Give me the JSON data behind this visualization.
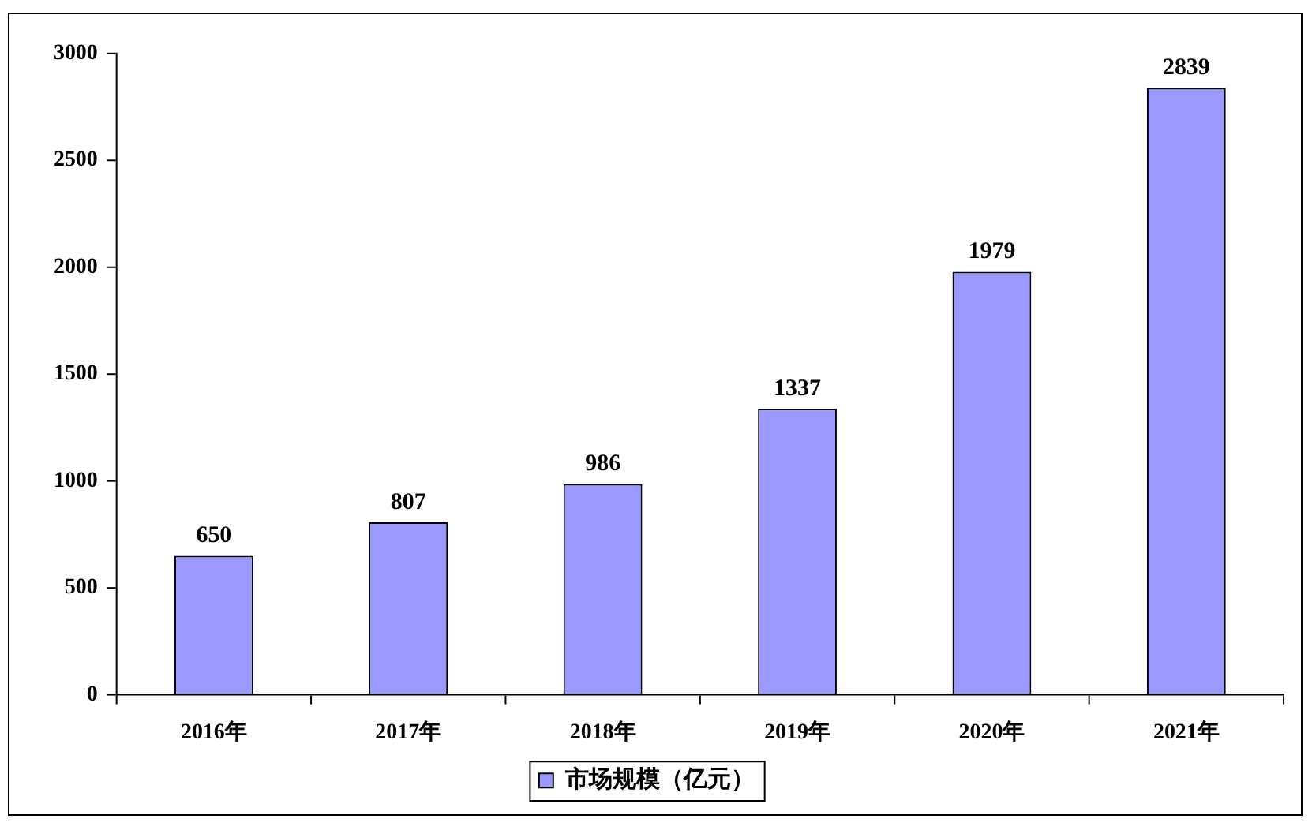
{
  "chart_data": {
    "type": "bar",
    "categories": [
      "2016年",
      "2017年",
      "2018年",
      "2019年",
      "2020年",
      "2021年"
    ],
    "series": [
      {
        "name": "市场规模（亿元）",
        "color": "#9999ff",
        "values": [
          650,
          807,
          986,
          1337,
          1979,
          2839
        ]
      }
    ],
    "ylim": [
      0,
      3000
    ],
    "yticks": [
      0,
      500,
      1000,
      1500,
      2000,
      2500,
      3000
    ],
    "grid": false,
    "legend": "bottom",
    "data_labels": true
  }
}
